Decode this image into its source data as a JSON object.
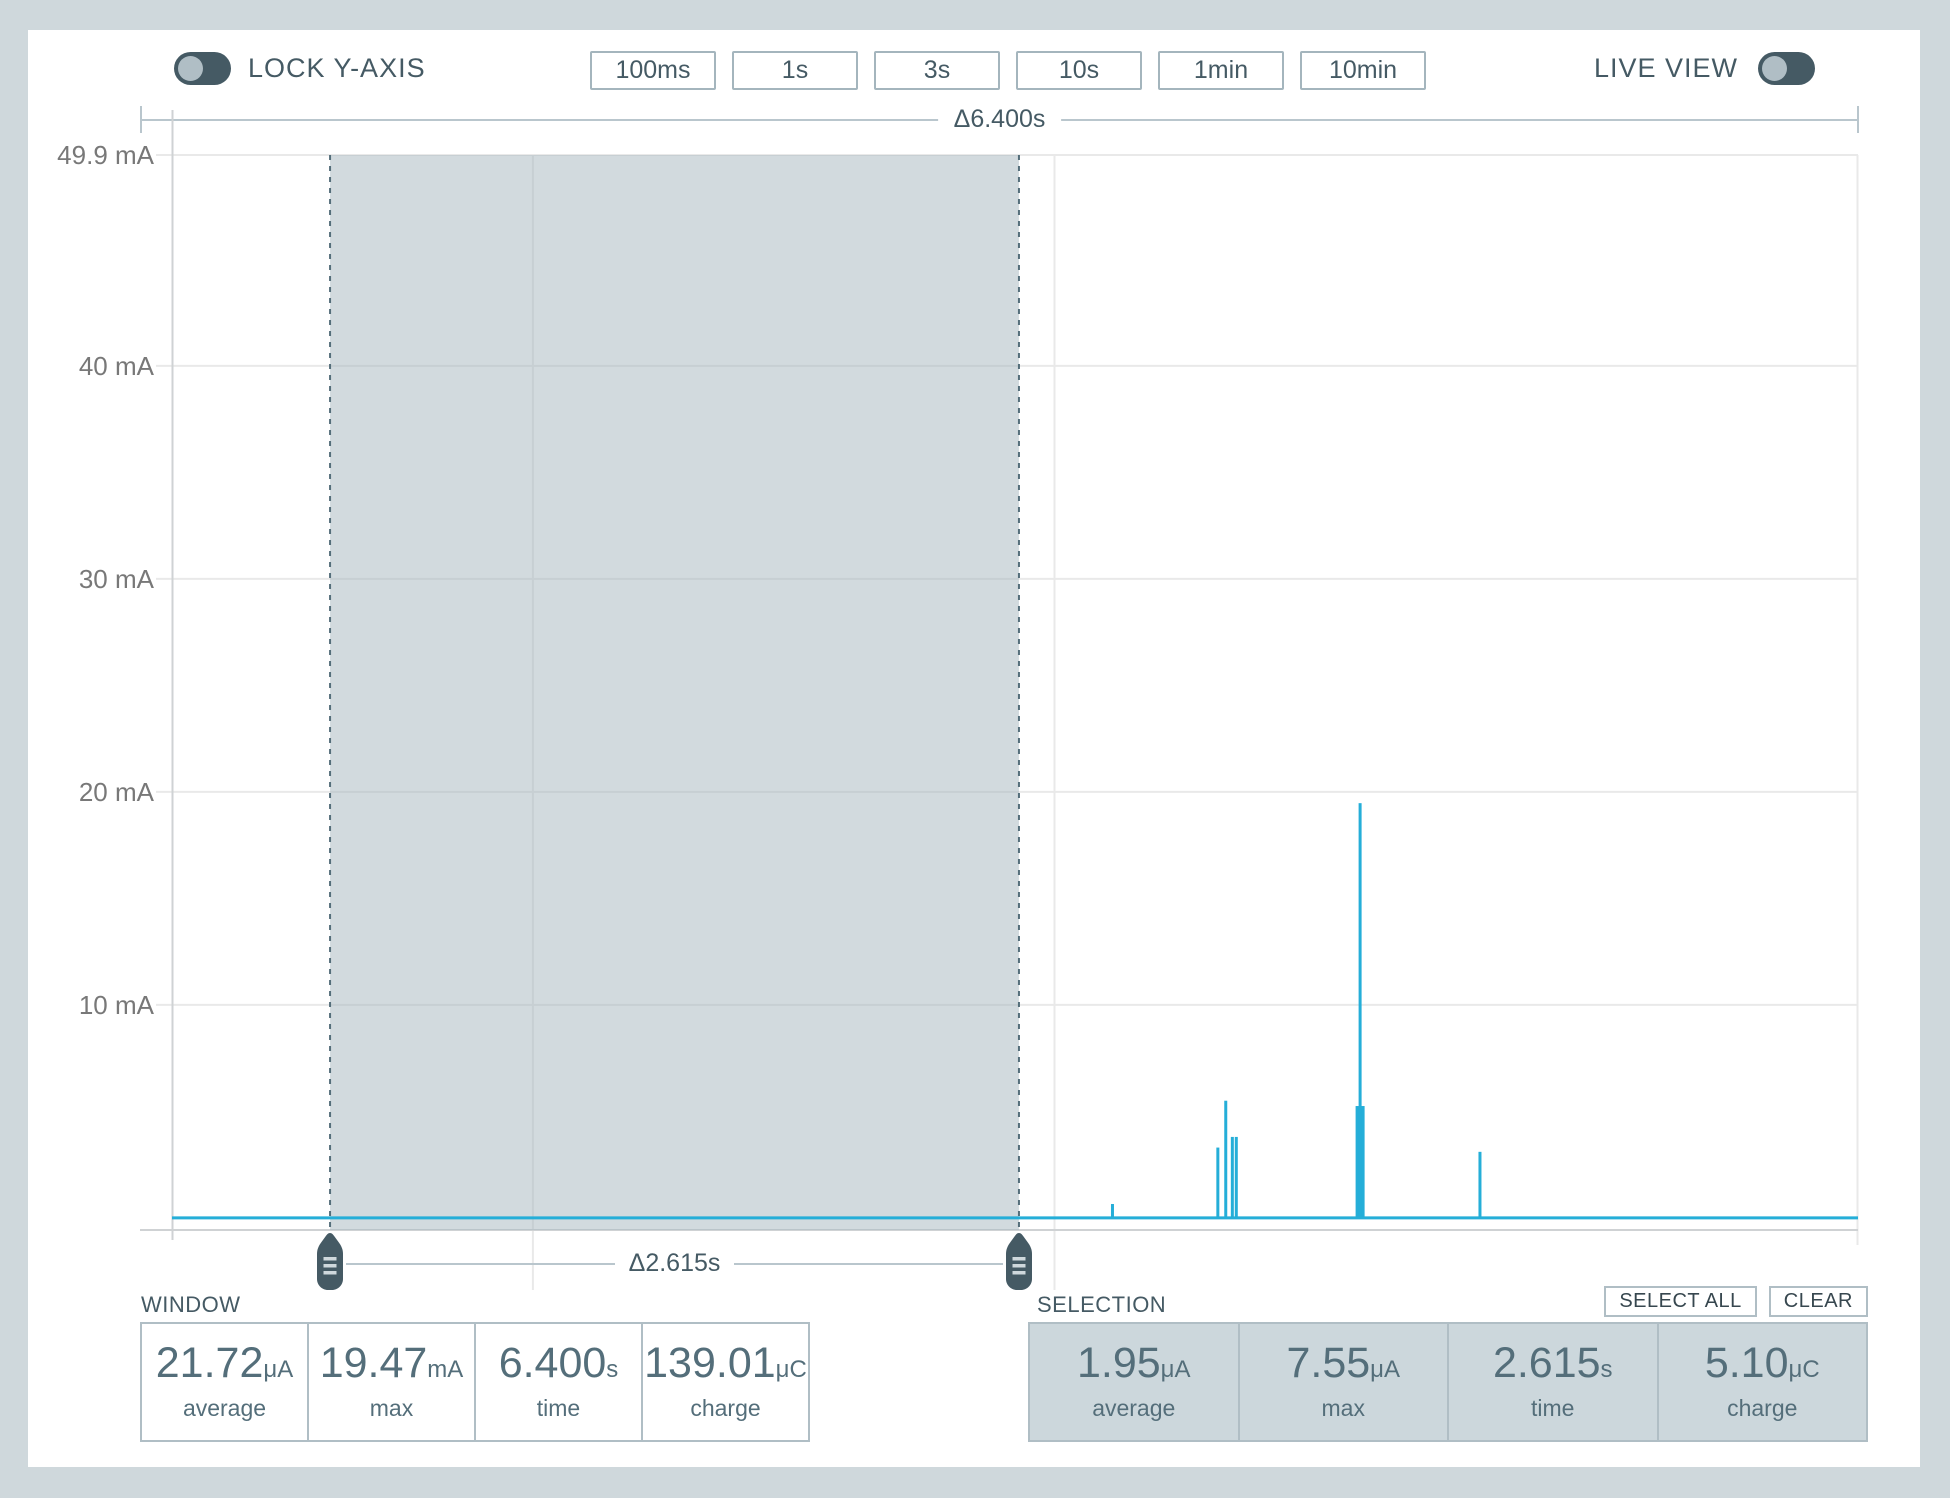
{
  "colors": {
    "background": "#cfd8dc",
    "card": "#ffffff",
    "dark_text": "#455a64",
    "accent_line": "#25aed8",
    "selection_fill": "rgba(165,182,190,0.5)",
    "selection_border": "#546e7a",
    "gridline": "#e9e9e9",
    "axis": "#cfd2d4",
    "ruler": "#b9c6cd",
    "panel_border": "#b0bec5",
    "toggle_track": "#455a64",
    "toggle_knob": "#b0bec5"
  },
  "toolbar": {
    "lock_y_axis_label": "LOCK Y-AXIS",
    "live_view_label": "LIVE VIEW",
    "lock_y_axis_on": false,
    "live_view_on": false,
    "zoom_presets": [
      "100ms",
      "1s",
      "3s",
      "10s",
      "1min",
      "10min"
    ]
  },
  "chart_data": {
    "type": "line",
    "x_domain_s": [
      0,
      6.4
    ],
    "y_domain_mA": [
      -0.57,
      49.9
    ],
    "y_unit": "mA",
    "x_unit": "s",
    "y_ticks": [
      {
        "value": 49.9,
        "label": "49.9 mA"
      },
      {
        "value": 40,
        "label": "40 mA"
      },
      {
        "value": 30,
        "label": "30 mA"
      },
      {
        "value": 20,
        "label": "20 mA"
      },
      {
        "value": 10,
        "label": "10 mA"
      }
    ],
    "v_gridlines_s": [
      1.37,
      3.35
    ],
    "baseline_mA": 0.002,
    "selection_s": [
      0.6,
      3.215
    ],
    "window_delta_label": "Δ6.400s",
    "selection_delta_label": "Δ2.615s",
    "spikes": [
      {
        "t_s": 3.57,
        "peak_mA": 0.65
      },
      {
        "t_s": 3.97,
        "peak_mA": 3.3
      },
      {
        "t_s": 4.0,
        "peak_mA": 5.5
      },
      {
        "t_s": 4.025,
        "peak_mA": 3.8
      },
      {
        "t_s": 4.04,
        "peak_mA": 3.8
      },
      {
        "t_s": 4.51,
        "peak_mA": 19.47,
        "base_mA": 5.25
      },
      {
        "t_s": 4.965,
        "peak_mA": 3.1
      }
    ]
  },
  "window_panel": {
    "title": "WINDOW",
    "stats": [
      {
        "value": "21.72",
        "unit": "μA",
        "label": "average"
      },
      {
        "value": "19.47",
        "unit": "mA",
        "label": "max"
      },
      {
        "value": "6.400",
        "unit": "s",
        "label": "time"
      },
      {
        "value": "139.01",
        "unit": "μC",
        "label": "charge"
      }
    ]
  },
  "selection_panel": {
    "title": "SELECTION",
    "select_all_label": "SELECT ALL",
    "clear_label": "CLEAR",
    "stats": [
      {
        "value": "1.95",
        "unit": "μA",
        "label": "average"
      },
      {
        "value": "7.55",
        "unit": "μA",
        "label": "max"
      },
      {
        "value": "2.615",
        "unit": "s",
        "label": "time"
      },
      {
        "value": "5.10",
        "unit": "μC",
        "label": "charge"
      }
    ]
  }
}
